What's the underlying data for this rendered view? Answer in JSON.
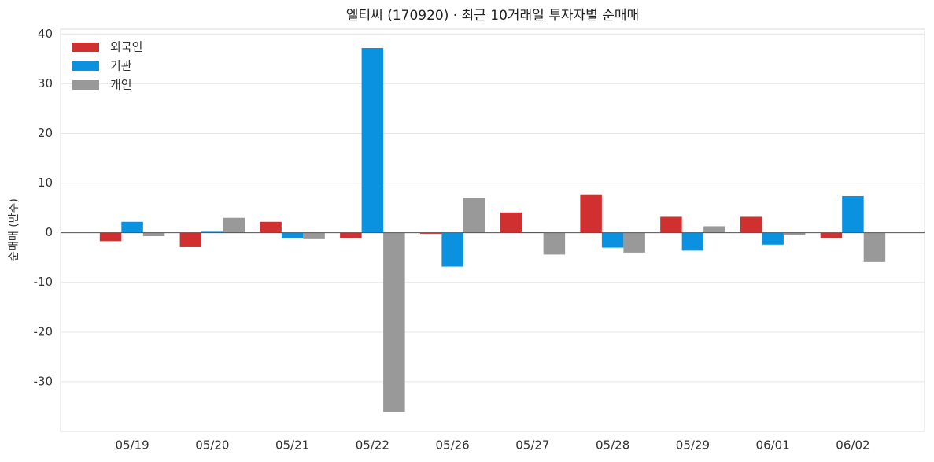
{
  "chart_data": {
    "type": "bar",
    "title": "엘티씨 (170920) · 최근 10거래일 투자자별 순매매",
    "y_label": "순매매 (만주)",
    "categories": [
      "05/19",
      "05/20",
      "05/21",
      "05/22",
      "05/26",
      "05/27",
      "05/28",
      "05/29",
      "06/01",
      "06/02"
    ],
    "series": [
      {
        "name": "외국인",
        "color": "#d03030",
        "values": [
          -1.7,
          -2.9,
          2.2,
          -1.1,
          -0.2,
          4.1,
          7.6,
          3.2,
          3.2,
          -1.1
        ]
      },
      {
        "name": "기관",
        "color": "#0a92e0",
        "values": [
          2.2,
          0.2,
          -1.1,
          37.2,
          -6.8,
          0.1,
          -3.0,
          -3.6,
          -2.4,
          7.4
        ]
      },
      {
        "name": "개인",
        "color": "#999999",
        "values": [
          -0.7,
          3.0,
          -1.3,
          -36.1,
          7.0,
          -4.4,
          -4.0,
          1.3,
          -0.5,
          -5.9
        ]
      }
    ],
    "ylim": [
      -40,
      41
    ],
    "yticks": [
      -30,
      -20,
      -10,
      0,
      10,
      20,
      30,
      40
    ],
    "grid": true,
    "legend": "upper-left"
  }
}
